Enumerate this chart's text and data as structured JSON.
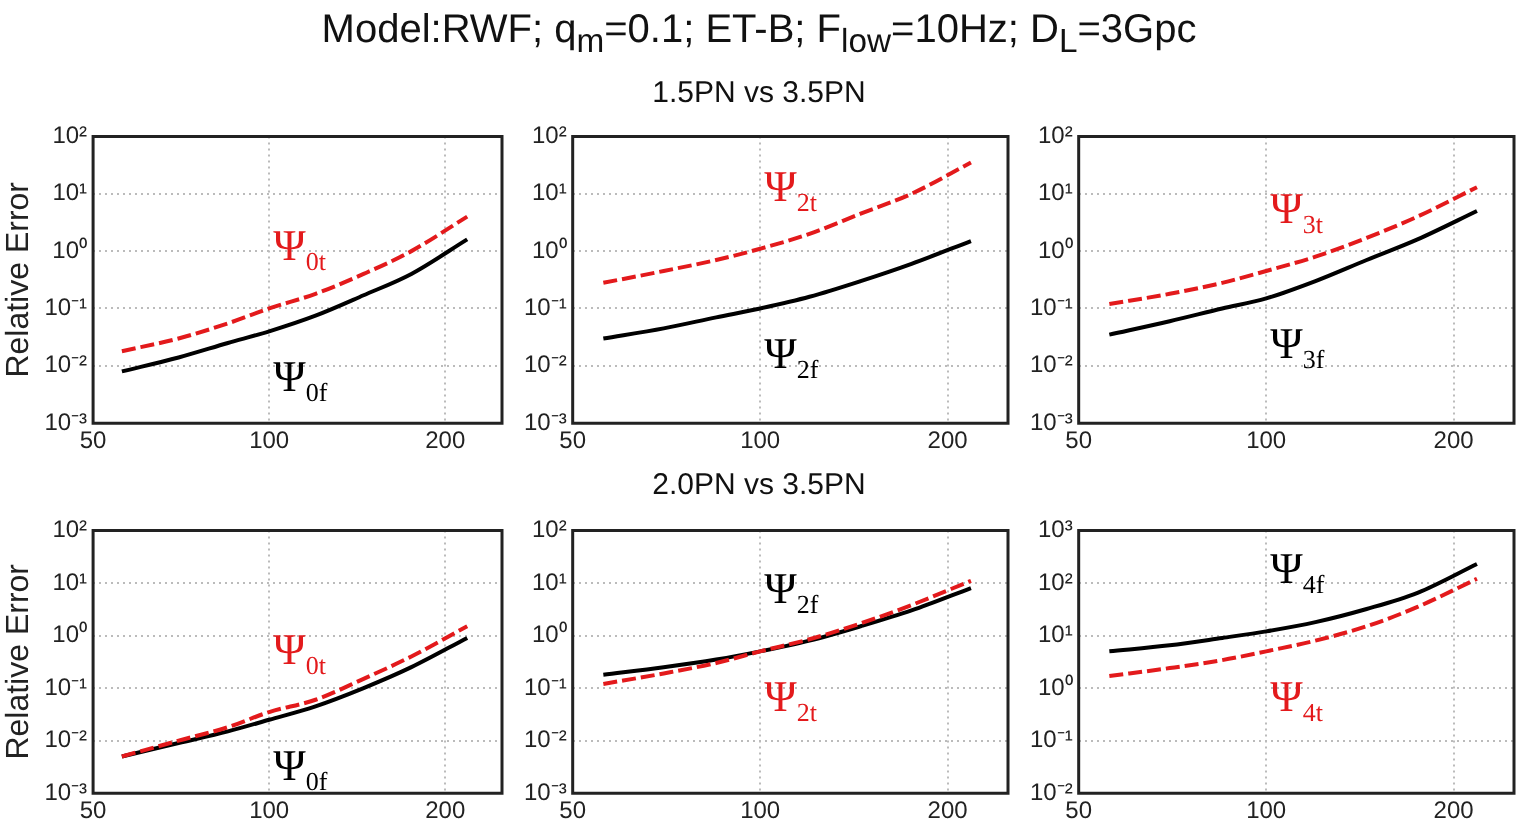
{
  "chart_data": [
    {
      "type": "line",
      "ylabel": "Relative Error",
      "log": "xy",
      "grid": true,
      "xlim": [
        50,
        250
      ],
      "xticks": [
        50,
        100,
        200
      ],
      "ylim": [
        0.001,
        100
      ],
      "yticks": [
        {
          "value": 0.001,
          "label": "10⁻³"
        },
        {
          "value": 0.01,
          "label": "10⁻²"
        },
        {
          "value": 0.1,
          "label": "10⁻¹"
        },
        {
          "value": 1,
          "label": "10⁰"
        },
        {
          "value": 10,
          "label": "10¹"
        },
        {
          "value": 100,
          "label": "10²"
        }
      ],
      "x": [
        56,
        70,
        85,
        100,
        120,
        145,
        175,
        218
      ],
      "series": [
        {
          "name": "Ψ$_{0f}$",
          "color": "#000000",
          "line_style": "solid",
          "values": [
            0.008,
            0.014,
            0.025,
            0.04,
            0.075,
            0.17,
            0.4,
            1.6
          ]
        },
        {
          "name": "Ψ$_{0t}$",
          "color": "#e31a1c",
          "line_style": "dashed",
          "values": [
            0.018,
            0.03,
            0.055,
            0.1,
            0.18,
            0.4,
            1.0,
            4
          ]
        }
      ]
    },
    {
      "type": "line",
      "title": "Model:RWF; q$_{m}$=0.1; ET-B; F$_{low}$=10Hz; D$_{L}$=3Gpc",
      "subtitle": "1.5PN vs 3.5PN",
      "log": "xy",
      "grid": true,
      "xlim": [
        50,
        250
      ],
      "xticks": [
        50,
        100,
        200
      ],
      "ylim": [
        0.001,
        100
      ],
      "yticks": [
        {
          "value": 0.001,
          "label": "10⁻³"
        },
        {
          "value": 0.01,
          "label": "10⁻²"
        },
        {
          "value": 0.1,
          "label": "10⁻¹"
        },
        {
          "value": 1,
          "label": "10⁰"
        },
        {
          "value": 10,
          "label": "10¹"
        },
        {
          "value": 100,
          "label": "10²"
        }
      ],
      "x": [
        56,
        70,
        85,
        100,
        120,
        145,
        175,
        218
      ],
      "series": [
        {
          "name": "Ψ$_{2f}$",
          "color": "#000000",
          "line_style": "solid",
          "values": [
            0.03,
            0.045,
            0.07,
            0.1,
            0.16,
            0.3,
            0.6,
            1.5
          ]
        },
        {
          "name": "Ψ$_{2t}$",
          "color": "#e31a1c",
          "line_style": "dashed",
          "values": [
            0.28,
            0.45,
            0.7,
            1.1,
            2.0,
            4.5,
            10,
            35
          ]
        }
      ]
    },
    {
      "type": "line",
      "log": "xy",
      "grid": true,
      "xlim": [
        50,
        250
      ],
      "xticks": [
        50,
        100,
        200
      ],
      "ylim": [
        0.001,
        100
      ],
      "yticks": [
        {
          "value": 0.001,
          "label": "10⁻³"
        },
        {
          "value": 0.01,
          "label": "10⁻²"
        },
        {
          "value": 0.1,
          "label": "10⁻¹"
        },
        {
          "value": 1,
          "label": "10⁰"
        },
        {
          "value": 10,
          "label": "10¹"
        },
        {
          "value": 100,
          "label": "10²"
        }
      ],
      "x": [
        56,
        70,
        85,
        100,
        120,
        145,
        175,
        218
      ],
      "series": [
        {
          "name": "Ψ$_{3f}$",
          "color": "#000000",
          "line_style": "solid",
          "values": [
            0.035,
            0.06,
            0.1,
            0.15,
            0.3,
            0.7,
            1.6,
            5
          ]
        },
        {
          "name": "Ψ$_{3t}$",
          "color": "#e31a1c",
          "line_style": "dashed",
          "values": [
            0.12,
            0.18,
            0.28,
            0.45,
            0.8,
            1.7,
            4,
            13
          ]
        }
      ]
    },
    {
      "type": "line",
      "ylabel": "Relative Error",
      "log": "xy",
      "grid": true,
      "xlim": [
        50,
        250
      ],
      "xticks": [
        50,
        100,
        200
      ],
      "ylim": [
        0.001,
        100
      ],
      "yticks": [
        {
          "value": 0.001,
          "label": "10⁻³"
        },
        {
          "value": 0.01,
          "label": "10⁻²"
        },
        {
          "value": 0.1,
          "label": "10⁻¹"
        },
        {
          "value": 1,
          "label": "10⁰"
        },
        {
          "value": 10,
          "label": "10¹"
        },
        {
          "value": 100,
          "label": "10²"
        }
      ],
      "x": [
        56,
        70,
        85,
        100,
        120,
        145,
        175,
        218
      ],
      "series": [
        {
          "name": "Ψ$_{0f}$",
          "color": "#000000",
          "line_style": "solid",
          "values": [
            0.005,
            0.009,
            0.015,
            0.025,
            0.045,
            0.1,
            0.25,
            0.9
          ]
        },
        {
          "name": "Ψ$_{0t}$",
          "color": "#e31a1c",
          "line_style": "dashed",
          "values": [
            0.005,
            0.01,
            0.018,
            0.035,
            0.06,
            0.15,
            0.4,
            1.5
          ]
        }
      ]
    },
    {
      "type": "line",
      "subtitle": "2.0PN vs 3.5PN",
      "log": "xy",
      "grid": true,
      "xlim": [
        50,
        250
      ],
      "xticks": [
        50,
        100,
        200
      ],
      "ylim": [
        0.001,
        100
      ],
      "yticks": [
        {
          "value": 0.001,
          "label": "10⁻³"
        },
        {
          "value": 0.01,
          "label": "10⁻²"
        },
        {
          "value": 0.1,
          "label": "10⁻¹"
        },
        {
          "value": 1,
          "label": "10⁰"
        },
        {
          "value": 10,
          "label": "10¹"
        },
        {
          "value": 100,
          "label": "10²"
        }
      ],
      "x": [
        56,
        70,
        85,
        100,
        120,
        145,
        175,
        218
      ],
      "series": [
        {
          "name": "Ψ$_{2f}$",
          "color": "#000000",
          "line_style": "solid",
          "values": [
            0.18,
            0.25,
            0.35,
            0.5,
            0.8,
            1.5,
            3,
            8
          ]
        },
        {
          "name": "Ψ$_{2t}$",
          "color": "#e31a1c",
          "line_style": "dashed",
          "values": [
            0.12,
            0.19,
            0.3,
            0.5,
            0.85,
            1.7,
            3.8,
            11
          ]
        }
      ]
    },
    {
      "type": "line",
      "log": "xy",
      "grid": true,
      "xlim": [
        50,
        250
      ],
      "xticks": [
        50,
        100,
        200
      ],
      "ylim": [
        0.01,
        1000
      ],
      "yticks": [
        {
          "value": 0.01,
          "label": "10⁻²"
        },
        {
          "value": 0.1,
          "label": "10⁻¹"
        },
        {
          "value": 1,
          "label": "10⁰"
        },
        {
          "value": 10,
          "label": "10¹"
        },
        {
          "value": 100,
          "label": "10²"
        },
        {
          "value": 1000,
          "label": "10³"
        }
      ],
      "x": [
        56,
        70,
        85,
        100,
        120,
        145,
        175,
        218
      ],
      "series": [
        {
          "name": "Ψ$_{4f}$",
          "color": "#000000",
          "line_style": "solid",
          "values": [
            5,
            6.5,
            9,
            12,
            18,
            32,
            65,
            230
          ]
        },
        {
          "name": "Ψ$_{4t}$",
          "color": "#e31a1c",
          "line_style": "dashed",
          "values": [
            1.7,
            2.4,
            3.4,
            5,
            8,
            15,
            35,
            120
          ]
        }
      ]
    }
  ]
}
